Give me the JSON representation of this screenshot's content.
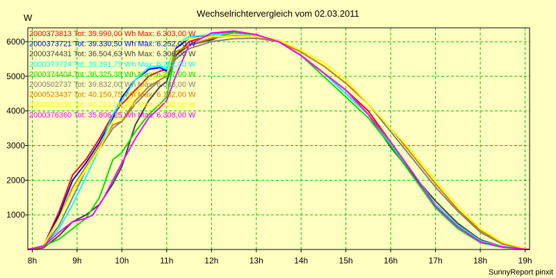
{
  "chart_data": {
    "type": "line",
    "title": "Wechselrichtervergleich vom 02.03.2011",
    "ylabel": "W",
    "xlabel": "",
    "footer": "SunnyReport pinxit",
    "xlim": [
      7.9,
      19.1
    ],
    "ylim": [
      0,
      6400
    ],
    "x_ticks": [
      8,
      9,
      10,
      11,
      12,
      13,
      14,
      15,
      16,
      17,
      18,
      19
    ],
    "x_tick_labels": [
      "8h",
      "9h",
      "10h",
      "11h",
      "12h",
      "13h",
      "14h",
      "15h",
      "16h",
      "17h",
      "18h",
      "19h"
    ],
    "y_ticks": [
      1000,
      2000,
      3000,
      4000,
      5000,
      6000
    ],
    "y_tick_labels": [
      "1000",
      "2000",
      "3000",
      "4000",
      "5000",
      "6000"
    ],
    "grid": true,
    "legend_position": "top-left",
    "background_color": "#ffffc0",
    "grid_color": "#00c000",
    "series": [
      {
        "name": "2000373813",
        "label": "2000373813 Tot: 39.990,00 Wh Max: 6.303,00 W",
        "color": "#ff0000",
        "points": [
          [
            7.9,
            0
          ],
          [
            8.25,
            100
          ],
          [
            8.6,
            1100
          ],
          [
            8.9,
            2150
          ],
          [
            9.2,
            2600
          ],
          [
            9.5,
            3200
          ],
          [
            9.8,
            3900
          ],
          [
            10.0,
            4200
          ],
          [
            10.3,
            4600
          ],
          [
            10.6,
            5000
          ],
          [
            10.85,
            5150
          ],
          [
            11.0,
            5200
          ],
          [
            11.2,
            5600
          ],
          [
            11.5,
            6000
          ],
          [
            12.0,
            6200
          ],
          [
            12.5,
            6303
          ],
          [
            13.0,
            6200
          ],
          [
            13.5,
            6000
          ],
          [
            14.0,
            5600
          ],
          [
            14.5,
            5100
          ],
          [
            15.0,
            4600
          ],
          [
            15.5,
            4000
          ],
          [
            16.0,
            3100
          ],
          [
            16.5,
            2200
          ],
          [
            17.0,
            1300
          ],
          [
            17.5,
            700
          ],
          [
            18.0,
            250
          ],
          [
            18.5,
            80
          ],
          [
            19.0,
            10
          ],
          [
            19.1,
            0
          ]
        ]
      },
      {
        "name": "2000373721",
        "label": "2000373721 Tot: 39.330,50 Wh Max: 6.252,00 W",
        "color": "#0000ff",
        "points": [
          [
            7.9,
            0
          ],
          [
            8.25,
            100
          ],
          [
            8.6,
            1000
          ],
          [
            8.9,
            2000
          ],
          [
            9.2,
            2500
          ],
          [
            9.5,
            3100
          ],
          [
            9.8,
            3800
          ],
          [
            10.0,
            4400
          ],
          [
            10.3,
            4900
          ],
          [
            10.6,
            5200
          ],
          [
            10.85,
            5250
          ],
          [
            11.0,
            5150
          ],
          [
            11.2,
            5800
          ],
          [
            11.5,
            6100
          ],
          [
            12.0,
            6200
          ],
          [
            12.5,
            6252
          ],
          [
            13.0,
            6200
          ],
          [
            13.5,
            6000
          ],
          [
            14.0,
            5600
          ],
          [
            14.5,
            5100
          ],
          [
            15.0,
            4500
          ],
          [
            15.5,
            3900
          ],
          [
            16.0,
            3050
          ],
          [
            16.5,
            2150
          ],
          [
            17.0,
            1300
          ],
          [
            17.5,
            700
          ],
          [
            18.0,
            250
          ],
          [
            18.5,
            80
          ],
          [
            19.0,
            10
          ],
          [
            19.1,
            0
          ]
        ]
      },
      {
        "name": "2000374431",
        "label": "2000374431 Tot: 36.504,63 Wh Max: 6.306,00 W",
        "color": "#404040",
        "points": [
          [
            7.9,
            0
          ],
          [
            8.25,
            50
          ],
          [
            8.6,
            400
          ],
          [
            8.9,
            800
          ],
          [
            9.2,
            1000
          ],
          [
            9.5,
            1300
          ],
          [
            9.8,
            1900
          ],
          [
            10.0,
            2400
          ],
          [
            10.3,
            3600
          ],
          [
            10.6,
            4300
          ],
          [
            10.85,
            4700
          ],
          [
            11.0,
            4850
          ],
          [
            11.2,
            5600
          ],
          [
            11.5,
            5900
          ],
          [
            12.0,
            6050
          ],
          [
            12.5,
            6306
          ],
          [
            13.0,
            6200
          ],
          [
            13.5,
            6000
          ],
          [
            14.0,
            5600
          ],
          [
            14.5,
            5100
          ],
          [
            15.0,
            4500
          ],
          [
            15.5,
            3900
          ],
          [
            16.0,
            2950
          ],
          [
            16.5,
            2150
          ],
          [
            17.0,
            1400
          ],
          [
            17.5,
            750
          ],
          [
            18.0,
            280
          ],
          [
            18.5,
            80
          ],
          [
            19.0,
            10
          ],
          [
            19.1,
            0
          ]
        ]
      },
      {
        "name": "2000373724",
        "label": "2000373724 Tot: 39.391,75 Wh Max: 6.252,00 W",
        "color": "#00ffff",
        "points": [
          [
            7.9,
            0
          ],
          [
            8.25,
            100
          ],
          [
            8.6,
            600
          ],
          [
            8.9,
            1300
          ],
          [
            9.2,
            2100
          ],
          [
            9.5,
            2900
          ],
          [
            9.8,
            3900
          ],
          [
            10.0,
            4300
          ],
          [
            10.3,
            4900
          ],
          [
            10.6,
            5250
          ],
          [
            10.85,
            5300
          ],
          [
            11.0,
            5200
          ],
          [
            11.2,
            5900
          ],
          [
            11.5,
            6150
          ],
          [
            12.0,
            6200
          ],
          [
            12.5,
            6252
          ],
          [
            13.0,
            6200
          ],
          [
            13.5,
            6000
          ],
          [
            14.0,
            5600
          ],
          [
            14.5,
            5100
          ],
          [
            15.0,
            4500
          ],
          [
            15.5,
            3900
          ],
          [
            16.0,
            3050
          ],
          [
            16.5,
            2200
          ],
          [
            17.0,
            1300
          ],
          [
            17.5,
            700
          ],
          [
            18.0,
            250
          ],
          [
            18.5,
            80
          ],
          [
            19.0,
            10
          ],
          [
            19.1,
            0
          ]
        ]
      },
      {
        "name": "2000374404",
        "label": "2000374404 Tot: 36.325,38 Wh Max: 6.257,00 W",
        "color": "#00e000",
        "points": [
          [
            7.9,
            0
          ],
          [
            8.25,
            100
          ],
          [
            8.6,
            300
          ],
          [
            8.9,
            600
          ],
          [
            9.2,
            900
          ],
          [
            9.5,
            1500
          ],
          [
            9.8,
            2600
          ],
          [
            10.0,
            2800
          ],
          [
            10.3,
            3400
          ],
          [
            10.6,
            3900
          ],
          [
            10.85,
            4200
          ],
          [
            11.0,
            4400
          ],
          [
            11.2,
            5700
          ],
          [
            11.5,
            5900
          ],
          [
            12.0,
            6100
          ],
          [
            12.5,
            6257
          ],
          [
            13.0,
            6200
          ],
          [
            13.5,
            6000
          ],
          [
            14.0,
            5600
          ],
          [
            14.5,
            5000
          ],
          [
            15.0,
            4400
          ],
          [
            15.5,
            3800
          ],
          [
            16.0,
            3000
          ],
          [
            16.5,
            2100
          ],
          [
            17.0,
            1200
          ],
          [
            17.5,
            600
          ],
          [
            18.0,
            200
          ],
          [
            18.5,
            60
          ],
          [
            19.0,
            10
          ],
          [
            19.1,
            0
          ]
        ]
      },
      {
        "name": "2000502737",
        "label": "2000502737 Tot: 39.832,00 Wh Max: 6.088,00 W",
        "color": "#808080",
        "points": [
          [
            7.9,
            0
          ],
          [
            8.25,
            80
          ],
          [
            8.6,
            700
          ],
          [
            8.9,
            1500
          ],
          [
            9.2,
            2300
          ],
          [
            9.5,
            2900
          ],
          [
            9.8,
            3500
          ],
          [
            10.0,
            3700
          ],
          [
            10.3,
            4200
          ],
          [
            10.6,
            4600
          ],
          [
            10.85,
            4900
          ],
          [
            11.0,
            5000
          ],
          [
            11.2,
            5500
          ],
          [
            11.5,
            5800
          ],
          [
            12.0,
            6000
          ],
          [
            12.5,
            6088
          ],
          [
            13.0,
            6100
          ],
          [
            13.5,
            6000
          ],
          [
            14.0,
            5700
          ],
          [
            14.5,
            5300
          ],
          [
            15.0,
            4800
          ],
          [
            15.5,
            4200
          ],
          [
            16.0,
            3400
          ],
          [
            16.5,
            2600
          ],
          [
            17.0,
            1800
          ],
          [
            17.5,
            1100
          ],
          [
            18.0,
            500
          ],
          [
            18.5,
            150
          ],
          [
            19.0,
            20
          ],
          [
            19.1,
            0
          ]
        ]
      },
      {
        "name": "2000523437",
        "label": "2000523437 Tot: 40.150,75 Wh Max: 6.182,00 W",
        "color": "#d08000",
        "points": [
          [
            7.9,
            0
          ],
          [
            8.25,
            80
          ],
          [
            8.6,
            900
          ],
          [
            8.9,
            1800
          ],
          [
            9.2,
            2400
          ],
          [
            9.5,
            3000
          ],
          [
            9.8,
            3600
          ],
          [
            10.0,
            3700
          ],
          [
            10.3,
            4300
          ],
          [
            10.6,
            4700
          ],
          [
            10.85,
            4900
          ],
          [
            11.0,
            5000
          ],
          [
            11.2,
            5700
          ],
          [
            11.5,
            5900
          ],
          [
            12.0,
            6100
          ],
          [
            12.5,
            6182
          ],
          [
            13.0,
            6150
          ],
          [
            13.5,
            6000
          ],
          [
            14.0,
            5700
          ],
          [
            14.5,
            5300
          ],
          [
            15.0,
            4800
          ],
          [
            15.5,
            4200
          ],
          [
            16.0,
            3500
          ],
          [
            16.5,
            2700
          ],
          [
            17.0,
            1900
          ],
          [
            17.5,
            1150
          ],
          [
            18.0,
            550
          ],
          [
            18.5,
            180
          ],
          [
            19.0,
            30
          ],
          [
            19.1,
            0
          ]
        ]
      },
      {
        "name": "2000523438",
        "label": "2000523438 Tot: 40.710,00 Wh Max: 6.150,00 W",
        "color": "#ffff00",
        "points": [
          [
            7.9,
            0
          ],
          [
            8.25,
            120
          ],
          [
            8.6,
            900
          ],
          [
            8.9,
            1700
          ],
          [
            9.2,
            2300
          ],
          [
            9.5,
            2900
          ],
          [
            9.8,
            3700
          ],
          [
            10.0,
            4000
          ],
          [
            10.3,
            4500
          ],
          [
            10.6,
            4900
          ],
          [
            10.85,
            5000
          ],
          [
            11.0,
            5050
          ],
          [
            11.2,
            5900
          ],
          [
            11.5,
            6100
          ],
          [
            12.0,
            6150
          ],
          [
            12.5,
            6150
          ],
          [
            13.0,
            6150
          ],
          [
            13.5,
            6050
          ],
          [
            14.0,
            5750
          ],
          [
            14.5,
            5400
          ],
          [
            15.0,
            4900
          ],
          [
            15.5,
            4200
          ],
          [
            16.0,
            3500
          ],
          [
            16.5,
            2800
          ],
          [
            17.0,
            2000
          ],
          [
            17.5,
            1250
          ],
          [
            18.0,
            600
          ],
          [
            18.5,
            200
          ],
          [
            19.0,
            30
          ],
          [
            19.1,
            0
          ]
        ]
      },
      {
        "name": "2000376360",
        "label": "2000376360 Tot: 35.806,25 Wh Max: 6.308,00 W",
        "color": "#ff00ff",
        "points": [
          [
            7.9,
            0
          ],
          [
            8.25,
            100
          ],
          [
            8.6,
            500
          ],
          [
            8.9,
            800
          ],
          [
            9.2,
            900
          ],
          [
            9.35,
            1000
          ],
          [
            9.6,
            1500
          ],
          [
            9.8,
            2000
          ],
          [
            10.0,
            2500
          ],
          [
            10.3,
            3200
          ],
          [
            10.6,
            3800
          ],
          [
            10.85,
            4100
          ],
          [
            11.0,
            4300
          ],
          [
            11.2,
            5000
          ],
          [
            11.5,
            5900
          ],
          [
            12.0,
            6250
          ],
          [
            12.5,
            6308
          ],
          [
            13.0,
            6200
          ],
          [
            13.5,
            6000
          ],
          [
            14.0,
            5600
          ],
          [
            14.5,
            5100
          ],
          [
            15.0,
            4600
          ],
          [
            15.5,
            3900
          ],
          [
            16.0,
            3100
          ],
          [
            16.5,
            2200
          ],
          [
            17.0,
            1250
          ],
          [
            17.5,
            650
          ],
          [
            18.0,
            220
          ],
          [
            18.5,
            70
          ],
          [
            19.0,
            10
          ],
          [
            19.1,
            0
          ]
        ]
      }
    ]
  }
}
